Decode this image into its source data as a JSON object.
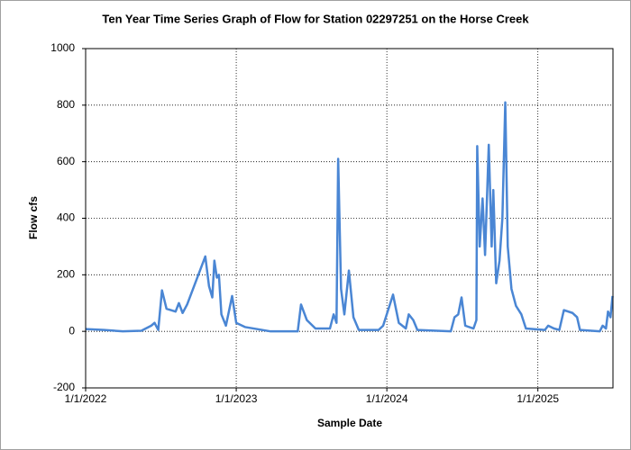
{
  "chart_data": {
    "type": "line",
    "title": "Ten Year Time Series Graph of Flow for Station 02297251 on the Horse Creek",
    "x_label": "Sample Date",
    "y_label": "Flow cfs",
    "xlim": [
      "2022-01-01",
      "2025-07-02"
    ],
    "xticks": [
      {
        "value": "2022-01-01",
        "label": "1/1/2022"
      },
      {
        "value": "2023-01-01",
        "label": "1/1/2023"
      },
      {
        "value": "2024-01-01",
        "label": "1/1/2024"
      },
      {
        "value": "2025-01-01",
        "label": "1/1/2025"
      }
    ],
    "ylim": [
      -200,
      1000
    ],
    "yticks": [
      -200,
      0,
      200,
      400,
      600,
      800,
      1000
    ],
    "grid": true,
    "x": [
      "2022-01-01",
      "2022-02-15",
      "2022-04-01",
      "2022-05-16",
      "2022-06-09",
      "2022-06-17",
      "2022-06-26",
      "2022-07-05",
      "2022-07-16",
      "2022-08-07",
      "2022-08-15",
      "2022-08-24",
      "2022-09-04",
      "2022-10-18",
      "2022-10-27",
      "2022-11-04",
      "2022-11-09",
      "2022-11-15",
      "2022-11-20",
      "2022-11-26",
      "2022-12-07",
      "2022-12-22",
      "2023-01-01",
      "2023-01-23",
      "2023-03-25",
      "2023-05-30",
      "2023-06-07",
      "2023-06-21",
      "2023-07-12",
      "2023-08-16",
      "2023-08-25",
      "2023-09-01",
      "2023-09-05",
      "2023-09-12",
      "2023-09-20",
      "2023-10-01",
      "2023-10-12",
      "2023-10-25",
      "2023-12-12",
      "2023-12-23",
      "2024-01-16",
      "2024-01-30",
      "2024-02-16",
      "2024-02-23",
      "2024-03-05",
      "2024-03-15",
      "2024-06-04",
      "2024-06-13",
      "2024-06-22",
      "2024-06-30",
      "2024-07-09",
      "2024-07-29",
      "2024-08-05",
      "2024-08-07",
      "2024-08-13",
      "2024-08-20",
      "2024-08-26",
      "2024-09-04",
      "2024-09-11",
      "2024-09-15",
      "2024-09-22",
      "2024-09-30",
      "2024-10-07",
      "2024-10-14",
      "2024-10-20",
      "2024-10-29",
      "2024-11-09",
      "2024-11-22",
      "2024-12-03",
      "2025-01-18",
      "2025-01-26",
      "2025-02-09",
      "2025-02-22",
      "2025-03-05",
      "2025-03-26",
      "2025-04-06",
      "2025-04-13",
      "2025-05-31",
      "2025-06-07",
      "2025-06-15",
      "2025-06-20",
      "2025-06-26",
      "2025-07-01"
    ],
    "series": [
      {
        "name": "Flow",
        "color": "#4a86d4",
        "values": [
          8,
          5,
          0,
          2,
          20,
          30,
          5,
          145,
          80,
          70,
          100,
          65,
          95,
          265,
          160,
          120,
          250,
          190,
          200,
          60,
          20,
          125,
          30,
          15,
          0,
          0,
          95,
          40,
          10,
          10,
          60,
          30,
          610,
          150,
          60,
          215,
          50,
          5,
          5,
          20,
          130,
          30,
          10,
          60,
          40,
          5,
          0,
          50,
          60,
          120,
          20,
          10,
          40,
          655,
          300,
          470,
          270,
          660,
          300,
          500,
          170,
          250,
          400,
          810,
          300,
          150,
          90,
          60,
          10,
          5,
          20,
          10,
          5,
          75,
          65,
          50,
          5,
          0,
          20,
          10,
          70,
          50,
          125
        ]
      }
    ]
  }
}
